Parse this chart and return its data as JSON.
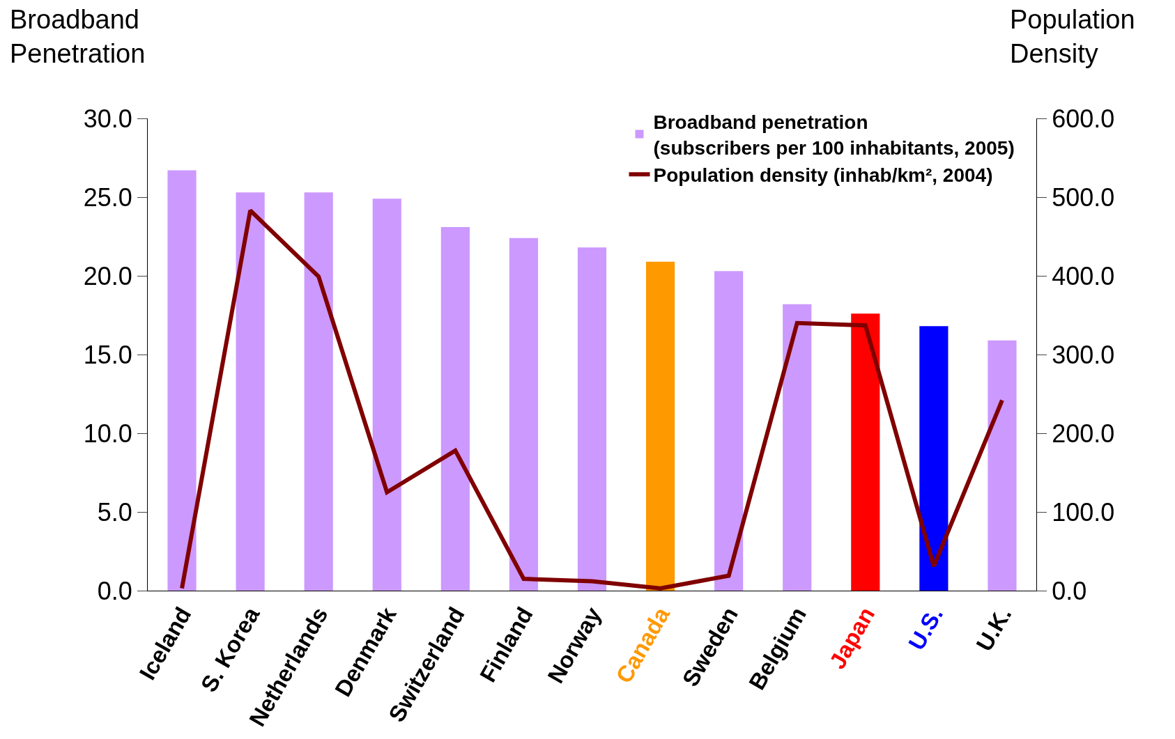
{
  "chart_data": {
    "type": "bar",
    "ylabel": "Broadband\nPenetration",
    "y2label": "Population\nDensity",
    "categories": [
      "Iceland",
      "S. Korea",
      "Netherlands",
      "Denmark",
      "Switzerland",
      "Finland",
      "Norway",
      "Canada",
      "Sweden",
      "Belgium",
      "Japan",
      "U.S.",
      "U.K."
    ],
    "series": [
      {
        "name": "Broadband penetration\n(subscribers per 100 inhabitants, 2005)",
        "color": "#cc99ff",
        "colors": [
          "#cc99ff",
          "#cc99ff",
          "#cc99ff",
          "#cc99ff",
          "#cc99ff",
          "#cc99ff",
          "#cc99ff",
          "#ff9900",
          "#cc99ff",
          "#cc99ff",
          "#ff0000",
          "#0000ff",
          "#cc99ff"
        ],
        "values": [
          26.7,
          25.3,
          25.3,
          24.9,
          23.1,
          22.4,
          21.8,
          20.9,
          20.3,
          18.2,
          17.6,
          16.8,
          15.9
        ]
      },
      {
        "name": "Population density (inhab/km², 2004)",
        "type": "line",
        "axis": "y2",
        "color": "#800000",
        "values": [
          3,
          483,
          399,
          125,
          178,
          15,
          12,
          3,
          19,
          340,
          337,
          31,
          242
        ]
      }
    ],
    "ylim": [
      0,
      30
    ],
    "yticks": [
      {
        "value": 0,
        "label": "0.0"
      },
      {
        "value": 5,
        "label": "5.0"
      },
      {
        "value": 10,
        "label": "10.0"
      },
      {
        "value": 15,
        "label": "15.0"
      },
      {
        "value": 20,
        "label": "20.0"
      },
      {
        "value": 25,
        "label": "25.0"
      },
      {
        "value": 30,
        "label": "30.0"
      }
    ],
    "y2lim": [
      0,
      600
    ],
    "y2ticks": [
      {
        "value": 0,
        "label": "0.0"
      },
      {
        "value": 100,
        "label": "100.0"
      },
      {
        "value": 200,
        "label": "200.0"
      },
      {
        "value": 300,
        "label": "300.0"
      },
      {
        "value": 400,
        "label": "400.0"
      },
      {
        "value": 500,
        "label": "500.0"
      },
      {
        "value": 600,
        "label": "600.0"
      }
    ],
    "legend": "top right",
    "line_style": "solid",
    "marker": "none"
  }
}
